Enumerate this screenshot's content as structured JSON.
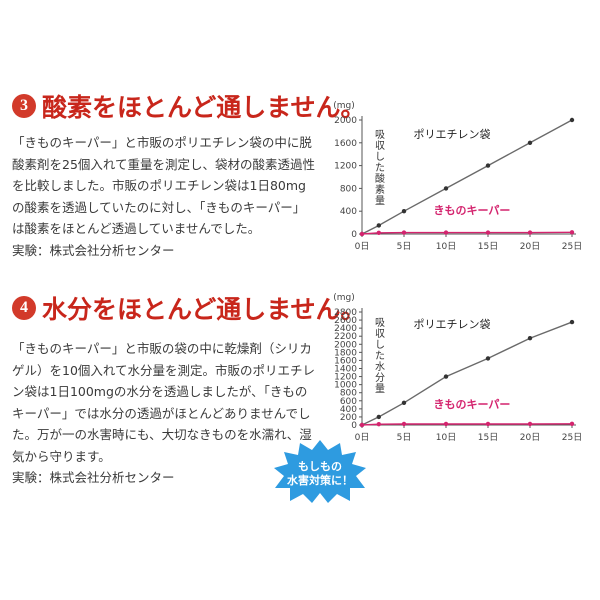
{
  "sections": [
    {
      "number": "3",
      "title": "酸素をほとんど通しません。",
      "paragraph": "「きものキーパー」と市販のポリエチレン袋の中に脱酸素剤を25個入れて重量を測定し、袋材の酸素透過性を比較しました。市販のポリエチレン袋は1日80mgの酸素を透過していたのに対し、「きものキーパー」は酸素をほとんど透過していませんでした。",
      "experiment": "実験：株式会社分析センター"
    },
    {
      "number": "4",
      "title": "水分をほとんど通しません。",
      "paragraph": "「きものキーパー」と市販の袋の中に乾燥剤（シリカゲル）を10個入れて水分量を測定。市販のポリエチレン袋は1日100mgの水分を透過しましたが、「きものキーパー」では水分の透過がほとんどありませんでした。万が一の水害時にも、大切なきものを水濡れ、湿気から守ります。",
      "experiment": "実験：株式会社分析センター"
    }
  ],
  "badge_burst": {
    "line1": "もしもの",
    "line2": "水害対策に！",
    "color": "#2e9be0"
  },
  "chart_data": [
    {
      "type": "line",
      "unit_label": "(mg)",
      "ylabel": "吸収した酸素量",
      "x": [
        0,
        2,
        5,
        10,
        15,
        20,
        25
      ],
      "x_ticks": [
        "0日",
        "5日",
        "10日",
        "15日",
        "20日",
        "25日"
      ],
      "x_tick_values": [
        0,
        5,
        10,
        15,
        20,
        25
      ],
      "y_ticks": [
        "0",
        "400",
        "800",
        "1200",
        "1600",
        "2000"
      ],
      "ylim": [
        0,
        2000
      ],
      "xlim": [
        0,
        25
      ],
      "series": [
        {
          "name": "ポリエチレン袋",
          "color": "#6a6a6a",
          "values": [
            0,
            150,
            400,
            800,
            1200,
            1600,
            2000
          ]
        },
        {
          "name": "きものキーパー",
          "color": "#d4246e",
          "values": [
            0,
            20,
            25,
            25,
            25,
            25,
            30
          ]
        }
      ]
    },
    {
      "type": "line",
      "unit_label": "(mg)",
      "ylabel": "吸収した水分量",
      "x": [
        0,
        2,
        5,
        10,
        15,
        20,
        25
      ],
      "x_ticks": [
        "0日",
        "5日",
        "10日",
        "15日",
        "20日",
        "25日"
      ],
      "x_tick_values": [
        0,
        5,
        10,
        15,
        20,
        25
      ],
      "y_ticks": [
        "0",
        "200",
        "400",
        "600",
        "800",
        "1000",
        "1200",
        "1400",
        "1600",
        "1800",
        "2000",
        "2200",
        "2400",
        "2600",
        "2800"
      ],
      "ylim": [
        0,
        2800
      ],
      "xlim": [
        0,
        25
      ],
      "series": [
        {
          "name": "ポリエチレン袋",
          "color": "#6a6a6a",
          "values": [
            0,
            200,
            550,
            1200,
            1650,
            2150,
            2550
          ]
        },
        {
          "name": "きものキーパー",
          "color": "#d4246e",
          "values": [
            0,
            20,
            25,
            25,
            25,
            25,
            30
          ]
        }
      ]
    }
  ]
}
